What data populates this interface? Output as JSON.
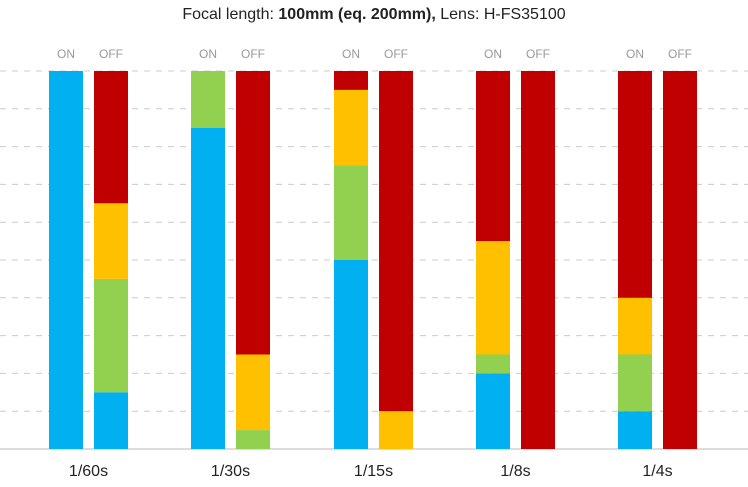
{
  "chart_data": {
    "type": "bar",
    "stacked": true,
    "title_parts": {
      "prefix": "Focal length: ",
      "bold": "100mm (eq. 200mm),",
      "suffix": " Lens: H-FS35100"
    },
    "bar_labels": [
      "ON",
      "OFF"
    ],
    "categories": [
      "1/60s",
      "1/30s",
      "1/15s",
      "1/8s",
      "1/4s"
    ],
    "ylim": [
      0,
      100
    ],
    "grid": true,
    "segment_colors": [
      "#00b0f0",
      "#92d050",
      "#ffc000",
      "#c00000"
    ],
    "series": [
      {
        "values_on": [
          100,
          85,
          50,
          20,
          10
        ],
        "values_off": [
          15,
          0,
          0,
          0,
          0
        ]
      },
      {
        "values_on": [
          0,
          15,
          25,
          5,
          15
        ],
        "values_off": [
          30,
          5,
          0,
          0,
          0
        ]
      },
      {
        "values_on": [
          0,
          0,
          20,
          30,
          15
        ],
        "values_off": [
          20,
          20,
          10,
          0,
          0
        ]
      },
      {
        "values_on": [
          0,
          0,
          5,
          45,
          60
        ],
        "values_off": [
          35,
          75,
          90,
          100,
          100
        ]
      }
    ]
  }
}
